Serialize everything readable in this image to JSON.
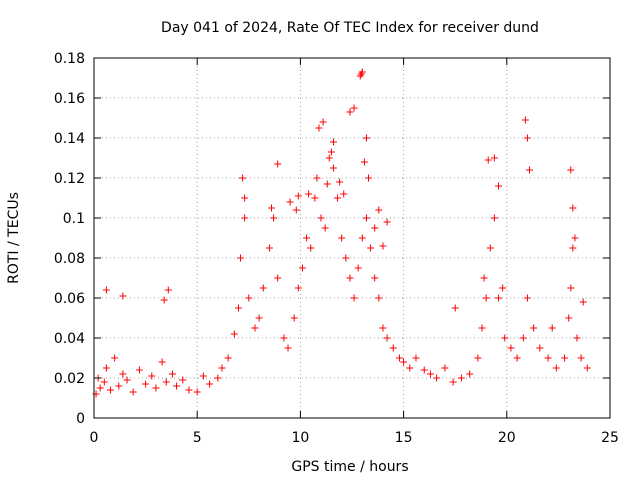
{
  "chart_data": {
    "type": "scatter",
    "title": "Day 041 of 2024, Rate Of TEC Index for receiver dund",
    "xlabel": "GPS time / hours",
    "ylabel": "ROTI / TECUs",
    "xlim": [
      0,
      25
    ],
    "ylim": [
      0,
      0.18
    ],
    "xticks": [
      0,
      5,
      10,
      15,
      20,
      25
    ],
    "xtick_labels": [
      "0",
      "5",
      "10",
      "15",
      "20",
      "25"
    ],
    "yticks": [
      0,
      0.02,
      0.04,
      0.06,
      0.08,
      0.1,
      0.12,
      0.14,
      0.16,
      0.18
    ],
    "ytick_labels": [
      "0",
      "0.02",
      "0.04",
      "0.06",
      "0.08",
      "0.1",
      "0.12",
      "0.14",
      "0.16",
      "0.18"
    ],
    "grid": true,
    "marker": "+",
    "marker_color": "#ff0000",
    "series": [
      {
        "name": "ROTI",
        "x": [
          0.1,
          0.2,
          0.3,
          0.5,
          0.6,
          0.8,
          1.0,
          1.2,
          1.4,
          1.6,
          1.9,
          2.2,
          2.5,
          2.8,
          3.0,
          3.3,
          3.5,
          3.8,
          4.0,
          4.3,
          4.6,
          5.0,
          5.3,
          5.6,
          6.0,
          6.2,
          6.5,
          6.8,
          7.0,
          7.1,
          7.3,
          7.5,
          7.8,
          8.0,
          8.2,
          8.5,
          8.7,
          8.9,
          9.2,
          9.4,
          9.7,
          9.9,
          10.1,
          10.3,
          10.5,
          10.7,
          10.8,
          11.0,
          11.2,
          11.4,
          11.6,
          11.8,
          12.0,
          12.2,
          12.4,
          12.6,
          12.8,
          13.0,
          13.2,
          13.4,
          13.6,
          13.8,
          14.0,
          14.2,
          14.5,
          14.8,
          15.0,
          15.3,
          15.6,
          16.0,
          16.3,
          16.6,
          17.0,
          17.4,
          17.8,
          18.2,
          18.6,
          18.8,
          19.0,
          19.2,
          19.4,
          19.6,
          19.9,
          20.2,
          20.5,
          20.8,
          21.0,
          21.3,
          21.6,
          22.0,
          22.4,
          22.8,
          23.0,
          23.1,
          23.2,
          23.4,
          23.6,
          23.9,
          0.6,
          1.4,
          3.4,
          3.6,
          7.2,
          7.3,
          8.6,
          8.9,
          9.8,
          10.9,
          11.1,
          11.6,
          12.4,
          12.6,
          13.0,
          13.2,
          13.3,
          13.1,
          13.6,
          14.0,
          19.1,
          19.4,
          19.6,
          20.9,
          21.0,
          21.1,
          23.1,
          23.2,
          23.3,
          12.9,
          12.95,
          11.5,
          11.9,
          12.1,
          13.8,
          14.2,
          10.4,
          11.3,
          9.5,
          9.9,
          17.5,
          18.9,
          19.8,
          22.2,
          23.7
        ],
        "y": [
          0.012,
          0.02,
          0.015,
          0.018,
          0.025,
          0.014,
          0.03,
          0.016,
          0.022,
          0.019,
          0.013,
          0.024,
          0.017,
          0.021,
          0.015,
          0.028,
          0.018,
          0.022,
          0.016,
          0.019,
          0.014,
          0.013,
          0.021,
          0.017,
          0.02,
          0.025,
          0.03,
          0.042,
          0.055,
          0.08,
          0.11,
          0.06,
          0.045,
          0.05,
          0.065,
          0.085,
          0.1,
          0.07,
          0.04,
          0.035,
          0.05,
          0.065,
          0.075,
          0.09,
          0.085,
          0.11,
          0.12,
          0.1,
          0.095,
          0.13,
          0.125,
          0.11,
          0.09,
          0.08,
          0.07,
          0.06,
          0.075,
          0.09,
          0.1,
          0.085,
          0.07,
          0.06,
          0.045,
          0.04,
          0.035,
          0.03,
          0.028,
          0.025,
          0.03,
          0.024,
          0.022,
          0.02,
          0.025,
          0.018,
          0.02,
          0.022,
          0.03,
          0.045,
          0.06,
          0.085,
          0.1,
          0.06,
          0.04,
          0.035,
          0.03,
          0.04,
          0.06,
          0.045,
          0.035,
          0.03,
          0.025,
          0.03,
          0.05,
          0.065,
          0.085,
          0.04,
          0.03,
          0.025,
          0.064,
          0.061,
          0.059,
          0.064,
          0.12,
          0.1,
          0.105,
          0.127,
          0.104,
          0.145,
          0.148,
          0.138,
          0.153,
          0.155,
          0.173,
          0.14,
          0.12,
          0.128,
          0.095,
          0.086,
          0.129,
          0.13,
          0.116,
          0.149,
          0.14,
          0.124,
          0.124,
          0.105,
          0.09,
          0.171,
          0.172,
          0.133,
          0.118,
          0.112,
          0.104,
          0.098,
          0.112,
          0.117,
          0.108,
          0.111,
          0.055,
          0.07,
          0.065,
          0.045,
          0.058
        ]
      }
    ]
  }
}
